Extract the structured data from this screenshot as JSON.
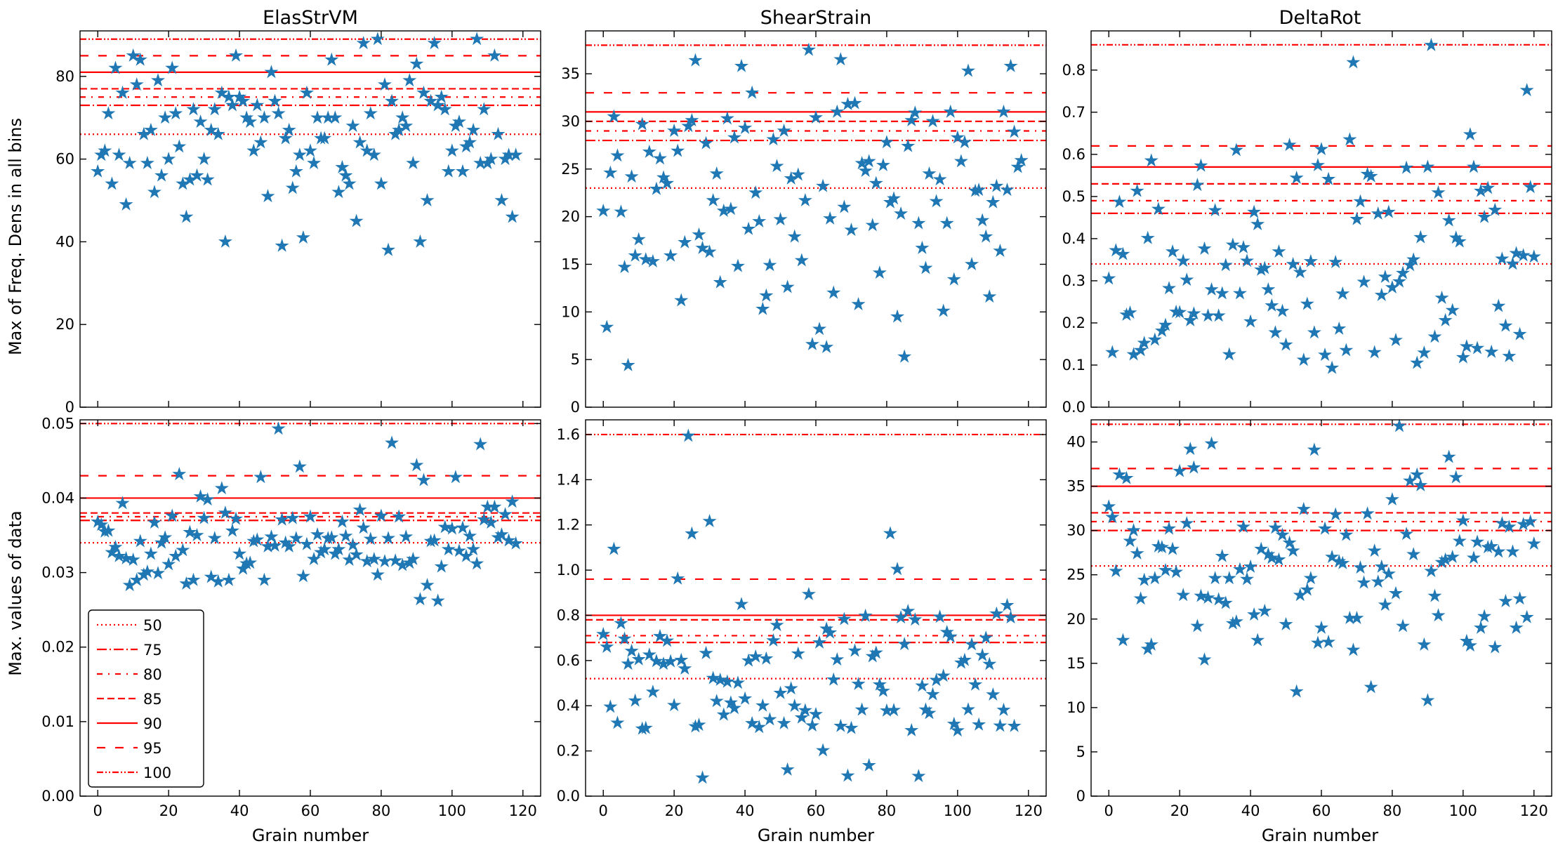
{
  "figure": {
    "ylabel_top": "Max of Freq. Dens in all bins",
    "ylabel_bottom": "Max. values of data",
    "xlabel": "Grain number"
  },
  "legend": {
    "entries": [
      {
        "label": "50",
        "style": "dotted"
      },
      {
        "label": "75",
        "style": "dashdot"
      },
      {
        "label": "80",
        "style": "dashdot_loose"
      },
      {
        "label": "85",
        "style": "dashed"
      },
      {
        "label": "90",
        "style": "solid"
      },
      {
        "label": "95",
        "style": "dashed_loose"
      },
      {
        "label": "100",
        "style": "dashdotdot"
      }
    ]
  },
  "colors": {
    "marker": "#1f77b4",
    "line": "#ff0000",
    "axis": "#000000"
  },
  "chart_data": [
    {
      "type": "scatter",
      "title": "ElasStrVM",
      "xlabel": "",
      "ylabel": "Max of Freq. Dens in all bins",
      "xlim": [
        -5,
        125
      ],
      "ylim": [
        0,
        91
      ],
      "xticks": [
        0,
        20,
        40,
        60,
        80,
        100,
        120
      ],
      "yticks": [
        0,
        20,
        40,
        60,
        80
      ],
      "ytick_labels": [
        "0",
        "20",
        "40",
        "60",
        "80"
      ],
      "percentiles": [
        {
          "p": "50",
          "value": 66
        },
        {
          "p": "75",
          "value": 73
        },
        {
          "p": "80",
          "value": 75
        },
        {
          "p": "85",
          "value": 77
        },
        {
          "p": "90",
          "value": 81
        },
        {
          "p": "95",
          "value": 85
        },
        {
          "p": "100",
          "value": 89
        }
      ],
      "values": [
        57,
        61,
        62,
        71,
        54,
        82,
        61,
        76,
        49,
        59,
        85,
        78,
        84,
        66,
        59,
        67,
        52,
        79,
        56,
        70,
        60,
        82,
        71,
        63,
        54,
        46,
        55,
        72,
        56,
        69,
        60,
        55,
        67,
        72,
        66,
        76,
        40,
        75,
        73,
        85,
        75,
        74,
        70,
        69,
        62,
        73,
        64,
        70,
        51,
        81,
        74,
        71,
        39,
        65,
        67,
        53,
        57,
        61,
        41,
        76,
        62,
        59,
        70,
        65,
        65,
        70,
        84,
        70,
        52,
        58,
        56,
        54,
        68,
        45,
        64,
        88,
        62,
        71,
        61,
        89,
        54,
        78,
        38,
        74,
        66,
        67,
        70,
        68,
        79,
        59,
        83,
        40,
        76,
        50,
        74,
        88,
        73,
        75,
        72,
        57,
        62,
        68,
        69,
        57,
        63,
        64,
        67,
        89,
        59,
        72,
        59,
        60,
        85,
        66,
        50,
        60,
        61,
        46,
        61
      ],
      "x_label": "Grain number"
    },
    {
      "type": "scatter",
      "title": "ShearStrain",
      "xlabel": "",
      "ylabel": "",
      "xlim": [
        -5,
        125
      ],
      "ylim": [
        0,
        39.5
      ],
      "xticks": [
        0,
        20,
        40,
        60,
        80,
        100,
        120
      ],
      "yticks": [
        0,
        5,
        10,
        15,
        20,
        25,
        30,
        35
      ],
      "ytick_labels": [
        "0",
        "5",
        "10",
        "15",
        "20",
        "25",
        "30",
        "35"
      ],
      "percentiles": [
        {
          "p": "50",
          "value": 23
        },
        {
          "p": "75",
          "value": 28
        },
        {
          "p": "80",
          "value": 29
        },
        {
          "p": "85",
          "value": 30
        },
        {
          "p": "90",
          "value": 31
        },
        {
          "p": "95",
          "value": 33
        },
        {
          "p": "100",
          "value": 38
        }
      ],
      "values": [
        20.6,
        8.4,
        24.6,
        30.5,
        26.4,
        20.5,
        14.7,
        4.4,
        24.2,
        15.9,
        17.6,
        29.7,
        15.5,
        26.8,
        15.3,
        22.9,
        26.1,
        24.1,
        23.5,
        15.9,
        29.0,
        26.9,
        11.2,
        17.3,
        29.5,
        30.1,
        36.4,
        18.1,
        16.7,
        27.7,
        16.3,
        21.7,
        24.5,
        13.1,
        20.6,
        30.3,
        20.8,
        28.3,
        14.8,
        35.8,
        29.3,
        18.7,
        33.0,
        22.5,
        19.5,
        10.3,
        11.7,
        14.9,
        28.1,
        25.3,
        19.7,
        29.0,
        12.6,
        24.0,
        17.9,
        24.4,
        15.4,
        21.7,
        37.5,
        6.6,
        30.4,
        8.2,
        23.2,
        6.3,
        19.8,
        12.0,
        31.0,
        36.5,
        21.0,
        31.8,
        18.6,
        31.9,
        10.8,
        25.6,
        24.8,
        25.8,
        19.1,
        23.5,
        14.1,
        25.4,
        27.8,
        21.5,
        21.9,
        9.5,
        20.3,
        5.3,
        27.4,
        30.1,
        30.9,
        19.3,
        16.7,
        14.6,
        24.5,
        30.0,
        21.6,
        23.9,
        10.1,
        19.3,
        31.0,
        13.4,
        28.3,
        25.8,
        27.8,
        35.3,
        15.0,
        22.7,
        22.8,
        19.6,
        17.9,
        11.6,
        21.5,
        23.2,
        16.4,
        31.0,
        22.8,
        35.8,
        28.9,
        25.2,
        25.9
      ],
      "x_label": "Grain number"
    },
    {
      "type": "scatter",
      "title": "DeltaRot",
      "xlabel": "",
      "ylabel": "",
      "xlim": [
        -5,
        125
      ],
      "ylim": [
        0,
        0.893
      ],
      "xticks": [
        0,
        20,
        40,
        60,
        80,
        100,
        120
      ],
      "yticks": [
        0,
        0.1,
        0.2,
        0.3,
        0.4,
        0.5,
        0.6,
        0.7,
        0.8
      ],
      "ytick_labels": [
        "0.0",
        "0.1",
        "0.2",
        "0.3",
        "0.4",
        "0.5",
        "0.6",
        "0.7",
        "0.8"
      ],
      "percentiles": [
        {
          "p": "50",
          "value": 0.34
        },
        {
          "p": "75",
          "value": 0.46
        },
        {
          "p": "80",
          "value": 0.49
        },
        {
          "p": "85",
          "value": 0.53
        },
        {
          "p": "90",
          "value": 0.57
        },
        {
          "p": "95",
          "value": 0.62
        },
        {
          "p": "100",
          "value": 0.86
        }
      ],
      "values": [
        0.305,
        0.13,
        0.372,
        0.487,
        0.363,
        0.219,
        0.224,
        0.125,
        0.513,
        0.135,
        0.152,
        0.401,
        0.585,
        0.16,
        0.47,
        0.181,
        0.195,
        0.282,
        0.369,
        0.226,
        0.225,
        0.347,
        0.302,
        0.206,
        0.222,
        0.527,
        0.573,
        0.376,
        0.217,
        0.279,
        0.467,
        0.217,
        0.27,
        0.337,
        0.125,
        0.385,
        0.61,
        0.27,
        0.379,
        0.347,
        0.203,
        0.463,
        0.434,
        0.326,
        0.33,
        0.279,
        0.241,
        0.177,
        0.369,
        0.228,
        0.148,
        0.622,
        0.339,
        0.544,
        0.32,
        0.112,
        0.245,
        0.346,
        0.177,
        0.574,
        0.612,
        0.124,
        0.541,
        0.093,
        0.344,
        0.186,
        0.269,
        0.135,
        0.635,
        0.818,
        0.446,
        0.488,
        0.297,
        0.553,
        0.548,
        0.13,
        0.459,
        0.266,
        0.309,
        0.463,
        0.284,
        0.159,
        0.298,
        0.318,
        0.568,
        0.337,
        0.35,
        0.105,
        0.403,
        0.129,
        0.57,
        0.859,
        0.167,
        0.509,
        0.259,
        0.206,
        0.443,
        0.23,
        0.402,
        0.393,
        0.118,
        0.144,
        0.647,
        0.57,
        0.14,
        0.513,
        0.451,
        0.52,
        0.131,
        0.468,
        0.24,
        0.352,
        0.193,
        0.121,
        0.34,
        0.365,
        0.173,
        0.36,
        0.752,
        0.522,
        0.357
      ],
      "x_label": "Grain number"
    },
    {
      "type": "scatter",
      "title": "",
      "xlabel": "Grain number",
      "ylabel": "Max. values of data",
      "xlim": [
        -5,
        125
      ],
      "ylim": [
        0,
        0.0505
      ],
      "xticks": [
        0,
        20,
        40,
        60,
        80,
        100,
        120
      ],
      "yticks": [
        0,
        0.01,
        0.02,
        0.03,
        0.04,
        0.05
      ],
      "ytick_labels": [
        "0.00",
        "0.01",
        "0.02",
        "0.03",
        "0.04",
        "0.05"
      ],
      "percentiles": [
        {
          "p": "50",
          "value": 0.034
        },
        {
          "p": "75",
          "value": 0.037
        },
        {
          "p": "80",
          "value": 0.0375
        },
        {
          "p": "85",
          "value": 0.038
        },
        {
          "p": "90",
          "value": 0.04
        },
        {
          "p": "95",
          "value": 0.043
        },
        {
          "p": "100",
          "value": 0.05
        }
      ],
      "values": [
        0.0368,
        0.0364,
        0.0355,
        0.0356,
        0.0327,
        0.0334,
        0.0322,
        0.0393,
        0.0319,
        0.0283,
        0.0317,
        0.029,
        0.0342,
        0.0297,
        0.0301,
        0.0325,
        0.0367,
        0.0299,
        0.034,
        0.0347,
        0.0311,
        0.0376,
        0.0322,
        0.0432,
        0.033,
        0.0285,
        0.0354,
        0.029,
        0.035,
        0.0402,
        0.0373,
        0.0398,
        0.0294,
        0.0346,
        0.0288,
        0.0413,
        0.038,
        0.029,
        0.0356,
        0.0372,
        0.0325,
        0.0305,
        0.0312,
        0.0313,
        0.0342,
        0.0344,
        0.0428,
        0.029,
        0.0335,
        0.0348,
        0.0336,
        0.0493,
        0.0371,
        0.034,
        0.0335,
        0.0373,
        0.0346,
        0.0442,
        0.0295,
        0.0338,
        0.0375,
        0.0318,
        0.0351,
        0.0327,
        0.0331,
        0.0346,
        0.0347,
        0.0325,
        0.0331,
        0.0368,
        0.0349,
        0.0317,
        0.0337,
        0.0324,
        0.0384,
        0.036,
        0.0315,
        0.0345,
        0.0318,
        0.0297,
        0.0376,
        0.0315,
        0.0346,
        0.0474,
        0.0316,
        0.0375,
        0.031,
        0.0348,
        0.0313,
        0.0318,
        0.0444,
        0.0264,
        0.0424,
        0.0283,
        0.0342,
        0.0343,
        0.0262,
        0.0308,
        0.0361,
        0.0331,
        0.0359,
        0.0428,
        0.0329,
        0.036,
        0.0322,
        0.0349,
        0.0331,
        0.0312,
        0.0472,
        0.0371,
        0.0388,
        0.0367,
        0.0388,
        0.0347,
        0.0351,
        0.0378,
        0.0343,
        0.0395,
        0.0339
      ],
      "x_label": "Grain number"
    },
    {
      "type": "scatter",
      "title": "",
      "xlabel": "Grain number",
      "ylabel": "",
      "xlim": [
        -5,
        125
      ],
      "ylim": [
        0,
        1.665
      ],
      "xticks": [
        0,
        20,
        40,
        60,
        80,
        100,
        120
      ],
      "yticks": [
        0,
        0.2,
        0.4,
        0.6,
        0.8,
        1.0,
        1.2,
        1.4,
        1.6
      ],
      "ytick_labels": [
        "0.0",
        "0.2",
        "0.4",
        "0.6",
        "0.8",
        "1.0",
        "1.2",
        "1.4",
        "1.6"
      ],
      "percentiles": [
        {
          "p": "50",
          "value": 0.52
        },
        {
          "p": "75",
          "value": 0.68
        },
        {
          "p": "80",
          "value": 0.71
        },
        {
          "p": "85",
          "value": 0.78
        },
        {
          "p": "90",
          "value": 0.8
        },
        {
          "p": "95",
          "value": 0.96
        },
        {
          "p": "100",
          "value": 1.6
        }
      ],
      "values": [
        0.716,
        0.66,
        0.395,
        1.093,
        0.324,
        0.764,
        0.696,
        0.585,
        0.642,
        0.422,
        0.605,
        0.298,
        0.301,
        0.625,
        0.461,
        0.597,
        0.707,
        0.585,
        0.687,
        0.596,
        0.402,
        0.962,
        0.602,
        0.564,
        1.594,
        1.161,
        0.308,
        0.315,
        0.081,
        0.632,
        1.216,
        0.522,
        0.42,
        0.514,
        0.36,
        0.506,
        0.413,
        0.389,
        0.501,
        0.849,
        0.431,
        0.599,
        0.322,
        0.617,
        0.305,
        0.4,
        0.608,
        0.339,
        0.688,
        0.756,
        0.456,
        0.322,
        0.117,
        0.476,
        0.399,
        0.63,
        0.347,
        0.379,
        0.893,
        0.312,
        0.362,
        0.679,
        0.202,
        0.74,
        0.723,
        0.515,
        0.604,
        0.31,
        0.783,
        0.09,
        0.301,
        0.643,
        0.496,
        0.382,
        0.797,
        0.136,
        0.618,
        0.634,
        0.493,
        0.465,
        0.378,
        1.162,
        0.38,
        1.004,
        0.79,
        0.672,
        0.818,
        0.291,
        0.781,
        0.088,
        0.488,
        0.382,
        0.367,
        0.45,
        0.513,
        0.793,
        0.532,
        0.725,
        0.705,
        0.319,
        0.29,
        0.59,
        0.602,
        0.383,
        0.671,
        0.493,
        0.316,
        0.623,
        0.7,
        0.584,
        0.449,
        0.807,
        0.311,
        0.381,
        0.844,
        0.79,
        0.31
      ],
      "x_label": "Grain number"
    },
    {
      "type": "scatter",
      "title": "",
      "xlabel": "Grain number",
      "ylabel": "",
      "xlim": [
        -5,
        125
      ],
      "ylim": [
        0,
        42.5
      ],
      "xticks": [
        0,
        20,
        40,
        60,
        80,
        100,
        120
      ],
      "yticks": [
        0,
        5,
        10,
        15,
        20,
        25,
        30,
        35,
        40
      ],
      "ytick_labels": [
        "0",
        "5",
        "10",
        "15",
        "20",
        "25",
        "30",
        "35",
        "40"
      ],
      "percentiles": [
        {
          "p": "50",
          "value": 26
        },
        {
          "p": "75",
          "value": 30
        },
        {
          "p": "80",
          "value": 31
        },
        {
          "p": "85",
          "value": 32
        },
        {
          "p": "90",
          "value": 35
        },
        {
          "p": "95",
          "value": 37
        },
        {
          "p": "100",
          "value": 42
        }
      ],
      "values": [
        32.7,
        31.5,
        25.4,
        36.3,
        17.6,
        35.9,
        28.8,
        30.0,
        27.4,
        22.3,
        24.4,
        16.6,
        17.1,
        24.6,
        28.2,
        28.1,
        25.5,
        30.2,
        27.9,
        25.3,
        36.7,
        22.7,
        30.8,
        39.2,
        37.1,
        19.2,
        22.6,
        15.4,
        22.4,
        39.8,
        24.6,
        22.2,
        27.1,
        21.8,
        24.6,
        19.5,
        19.7,
        25.6,
        30.4,
        24.5,
        25.9,
        20.5,
        17.6,
        27.9,
        20.9,
        27.3,
        26.9,
        30.3,
        26.7,
        29.5,
        19.4,
        28.6,
        27.7,
        11.8,
        22.7,
        32.4,
        23.3,
        24.6,
        39.1,
        17.3,
        19.0,
        30.2,
        17.4,
        27.0,
        31.8,
        26.5,
        26.3,
        29.5,
        20.1,
        16.5,
        20.1,
        25.8,
        24.1,
        31.9,
        12.3,
        27.7,
        24.2,
        25.9,
        21.6,
        25.1,
        33.5,
        22.9,
        41.8,
        19.2,
        29.6,
        35.6,
        27.3,
        36.3,
        35.1,
        17.1,
        10.8,
        25.4,
        22.6,
        20.4,
        26.4,
        26.7,
        38.3,
        27.0,
        36.0,
        28.8,
        31.1,
        17.5,
        17.0,
        26.9,
        28.7,
        19.0,
        20.3,
        28.1,
        28.2,
        16.8,
        27.6,
        30.8,
        22.0,
        30.4,
        27.6,
        19.0,
        22.3,
        30.7,
        20.2,
        31.0,
        28.5
      ],
      "x_label": "Grain number"
    }
  ]
}
